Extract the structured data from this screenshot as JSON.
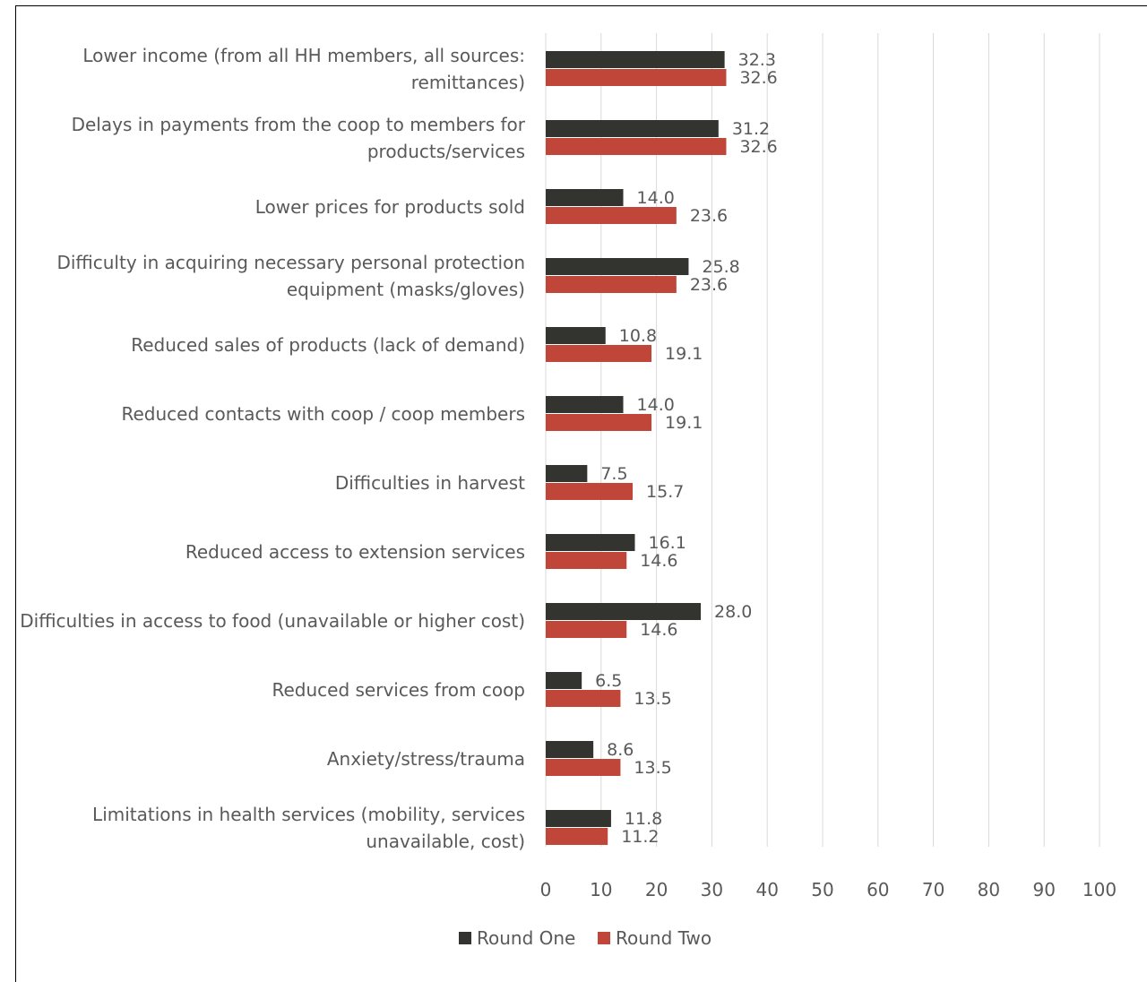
{
  "chart_data": {
    "type": "bar",
    "orientation": "horizontal",
    "categories": [
      "Lower income (from all HH members, all sources: remittances)",
      "Delays in payments from the coop to members for products/services",
      "Lower prices for products sold",
      "Difficulty in acquiring necessary personal protection equipment (masks/gloves)",
      "Reduced sales of  products (lack of demand)",
      "Reduced contacts with coop / coop members",
      "Difficulties in harvest",
      "Reduced access to extension services",
      "Difficulties in access to food (unavailable or higher cost)",
      "Reduced services from coop",
      "Anxiety/stress/trauma",
      "Limitations in health services (mobility, services unavailable, cost)"
    ],
    "category_lines": [
      [
        "Lower income (from all HH members, all sources:",
        "remittances)"
      ],
      [
        "Delays in payments from the coop to members for",
        "products/services"
      ],
      [
        "Lower prices for products sold"
      ],
      [
        "Difficulty in acquiring necessary personal protection",
        "equipment (masks/gloves)"
      ],
      [
        "Reduced sales of  products (lack of demand)"
      ],
      [
        "Reduced contacts with coop / coop members"
      ],
      [
        "Difficulties in harvest"
      ],
      [
        "Reduced access to extension services"
      ],
      [
        "Difficulties in access to food (unavailable or higher cost)"
      ],
      [
        "Reduced services from coop"
      ],
      [
        "Anxiety/stress/trauma"
      ],
      [
        "Limitations in health services (mobility, services",
        "unavailable, cost)"
      ]
    ],
    "series": [
      {
        "name": "Round One",
        "color": "#333330",
        "values": [
          32.3,
          31.2,
          14.0,
          25.8,
          10.8,
          14.0,
          7.5,
          16.1,
          28.0,
          6.5,
          8.6,
          11.8
        ],
        "labels": [
          "32.3",
          "31.2",
          "14.0",
          "25.8",
          "10.8",
          "14.0",
          "7.5",
          "16.1",
          "28.0",
          "6.5",
          "8.6",
          "11.8"
        ]
      },
      {
        "name": "Round Two",
        "color": "#C0463A",
        "values": [
          32.6,
          32.6,
          23.6,
          23.6,
          19.1,
          19.1,
          15.7,
          14.6,
          14.6,
          13.5,
          13.5,
          11.2
        ],
        "labels": [
          "32.6",
          "32.6",
          "23.6",
          "23.6",
          "19.1",
          "19.1",
          "15.7",
          "14.6",
          "14.6",
          "13.5",
          "13.5",
          "11.2"
        ]
      }
    ],
    "xlim": [
      0,
      100
    ],
    "xticks": [
      "0",
      "10",
      "20",
      "30",
      "40",
      "50",
      "60",
      "70",
      "80",
      "90",
      "100"
    ],
    "grid": "vertical",
    "legend": "bottom-center",
    "title": "",
    "xlabel": "",
    "ylabel": ""
  }
}
